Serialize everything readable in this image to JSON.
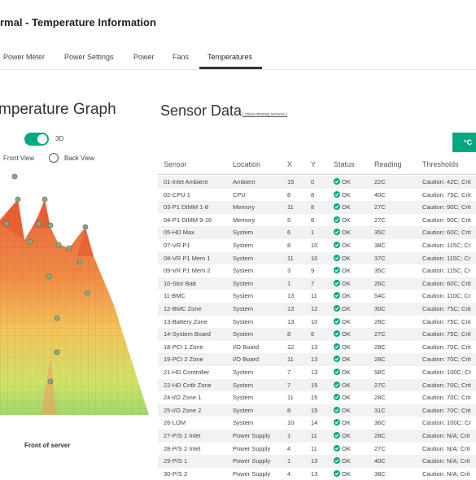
{
  "page": {
    "title": "rmal - Temperature Information"
  },
  "tabs": [
    {
      "label": "Power Meter",
      "active": false
    },
    {
      "label": "Power Settings",
      "active": false
    },
    {
      "label": "Power",
      "active": false
    },
    {
      "label": "Fans",
      "active": false
    },
    {
      "label": "Temperatures",
      "active": true
    }
  ],
  "graph": {
    "title": "mperature Graph",
    "toggle_label": "3D",
    "toggle_on": true,
    "front_view_label": "Front View",
    "back_view_label": "Back View",
    "caption": "Front of server"
  },
  "sensor_data": {
    "title": "Sensor Data",
    "show_missing_link": "( show missing sensors )",
    "unit_button": "°C",
    "columns": [
      "Sensor",
      "Location",
      "X",
      "Y",
      "Status",
      "Reading",
      "Thresholds"
    ],
    "rows": [
      [
        "01-Inlet Ambient",
        "Ambient",
        "15",
        "0",
        "OK",
        "22C",
        "Caution: 42C; Crit"
      ],
      [
        "02-CPU 1",
        "CPU",
        "8",
        "8",
        "OK",
        "40C",
        "Caution: 75C; Crit"
      ],
      [
        "03-P1 DIMM 1-8",
        "Memory",
        "11",
        "8",
        "OK",
        "27C",
        "Caution: 90C; Crit"
      ],
      [
        "04-P1 DIMM 9-16",
        "Memory",
        "5",
        "8",
        "OK",
        "27C",
        "Caution: 90C; Crit"
      ],
      [
        "05-HD Max",
        "System",
        "6",
        "1",
        "OK",
        "35C",
        "Caution: 60C; Crit"
      ],
      [
        "07-VR P1",
        "System",
        "8",
        "10",
        "OK",
        "38C",
        "Caution: 115C; Cr"
      ],
      [
        "08-VR P1 Mem 1",
        "System",
        "11",
        "10",
        "OK",
        "37C",
        "Caution: 115C; Cr"
      ],
      [
        "09-VR P1 Mem 2",
        "System",
        "3",
        "9",
        "OK",
        "35C",
        "Caution: 115C; Cr"
      ],
      [
        "10-Stor Batt",
        "System",
        "1",
        "7",
        "OK",
        "26C",
        "Caution: 60C; Crit"
      ],
      [
        "11-BMC",
        "System",
        "13",
        "11",
        "OK",
        "54C",
        "Caution: 110C; Cr"
      ],
      [
        "12-BMC Zone",
        "System",
        "13",
        "12",
        "OK",
        "30C",
        "Caution: 75C; Crit"
      ],
      [
        "13-Battery Zone",
        "System",
        "13",
        "10",
        "OK",
        "28C",
        "Caution: 75C; Crit"
      ],
      [
        "14-System Board",
        "System",
        "8",
        "6",
        "OK",
        "27C",
        "Caution: 75C; Crit"
      ],
      [
        "18-PCI 1 Zone",
        "I/O Board",
        "12",
        "13",
        "OK",
        "28C",
        "Caution: 70C; Crit"
      ],
      [
        "19-PCI 2 Zone",
        "I/O Board",
        "11",
        "13",
        "OK",
        "28C",
        "Caution: 70C; Crit"
      ],
      [
        "21-HD Controller",
        "System",
        "7",
        "13",
        "OK",
        "58C",
        "Caution: 100C; Cr"
      ],
      [
        "22-HD Cntlr Zone",
        "System",
        "7",
        "15",
        "OK",
        "27C",
        "Caution: 70C; Crit"
      ],
      [
        "24-I/O Zone 1",
        "System",
        "11",
        "15",
        "OK",
        "28C",
        "Caution: 70C; Crit"
      ],
      [
        "25-I/O Zone 2",
        "System",
        "8",
        "15",
        "OK",
        "31C",
        "Caution: 70C; Crit"
      ],
      [
        "26-LOM",
        "System",
        "10",
        "14",
        "OK",
        "36C",
        "Caution: 100C; Cr"
      ],
      [
        "27-P/S 1 Inlet",
        "Power Supply",
        "1",
        "11",
        "OK",
        "28C",
        "Caution: N/A; Crit"
      ],
      [
        "28-P/S 2 Inlet",
        "Power Supply",
        "4",
        "11",
        "OK",
        "27C",
        "Caution: N/A; Crit"
      ],
      [
        "29-P/S 1",
        "Power Supply",
        "1",
        "13",
        "OK",
        "40C",
        "Caution: N/A; Crit"
      ],
      [
        "30-P/S 2",
        "Power Supply",
        "4",
        "13",
        "OK",
        "38C",
        "Caution: N/A; Crit"
      ]
    ]
  },
  "colors": {
    "accent": "#01a982",
    "hot": "#e8633a",
    "warm": "#f5c25a",
    "cool": "#9fd86a"
  }
}
